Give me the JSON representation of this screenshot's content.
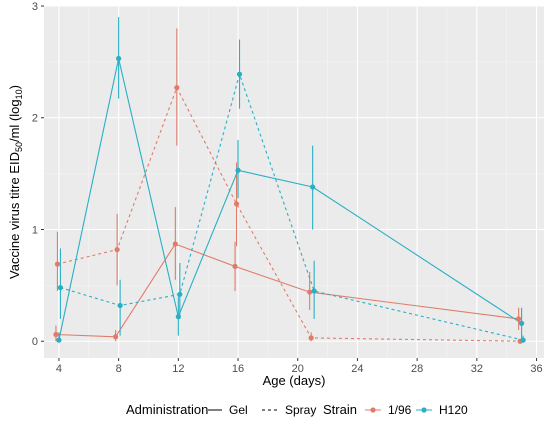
{
  "chart_data": {
    "type": "line",
    "xlabel": "Age (days)",
    "ylabel_main": "Vaccine virus titre EID",
    "ylabel_sub": "50",
    "ylabel_mid": "/ml (log",
    "ylabel_sub2": "10",
    "ylabel_end": ")",
    "xlim": [
      3,
      36.5
    ],
    "ylim": [
      -0.15,
      3.0
    ],
    "x_ticks": [
      4,
      8,
      12,
      16,
      20,
      24,
      28,
      32,
      36
    ],
    "y_ticks": [
      0,
      1,
      2,
      3
    ],
    "grid": true,
    "legend_position": "bottom",
    "legend": {
      "administration_title": "Administration",
      "administration_items": [
        {
          "label": "Gel",
          "linetype": "solid"
        },
        {
          "label": "Spray",
          "linetype": "dashed"
        }
      ],
      "strain_title": "Strain",
      "strain_items": [
        {
          "label": "1/96",
          "color": "#E07B6A"
        },
        {
          "label": "H120",
          "color": "#29AFC4"
        }
      ]
    },
    "series": [
      {
        "strain": "1/96",
        "administration": "Gel",
        "color": "#E07B6A",
        "linetype": "solid",
        "x": [
          3.8,
          7.8,
          11.8,
          15.8,
          20.8,
          34.8
        ],
        "y": [
          0.06,
          0.04,
          0.87,
          0.67,
          0.44,
          0.2
        ],
        "err_low": [
          0.0,
          0.0,
          0.55,
          0.45,
          0.28,
          0.1
        ],
        "err_high": [
          0.14,
          0.1,
          1.2,
          0.89,
          0.62,
          0.3
        ]
      },
      {
        "strain": "1/96",
        "administration": "Spray",
        "color": "#E07B6A",
        "linetype": "dashed",
        "x": [
          3.9,
          7.9,
          11.9,
          15.9,
          20.9,
          34.9
        ],
        "y": [
          0.69,
          0.82,
          2.27,
          1.23,
          0.03,
          0.0
        ],
        "err_low": [
          0.45,
          0.5,
          1.75,
          0.85,
          0.0,
          0.0
        ],
        "err_high": [
          0.98,
          1.14,
          2.8,
          1.6,
          0.08,
          0.02
        ]
      },
      {
        "strain": "H120",
        "administration": "Gel",
        "color": "#29AFC4",
        "linetype": "solid",
        "x": [
          4.0,
          8.0,
          12.0,
          16.0,
          21.0,
          35.0
        ],
        "y": [
          0.01,
          2.53,
          0.22,
          1.53,
          1.38,
          0.16
        ],
        "err_low": [
          0.0,
          2.17,
          0.05,
          1.28,
          1.0,
          0.0
        ],
        "err_high": [
          0.08,
          2.9,
          0.4,
          1.8,
          1.75,
          0.3
        ]
      },
      {
        "strain": "H120",
        "administration": "Spray",
        "color": "#29AFC4",
        "linetype": "dashed",
        "x": [
          4.1,
          8.1,
          12.1,
          16.1,
          21.1,
          35.1
        ],
        "y": [
          0.48,
          0.32,
          0.42,
          2.39,
          0.45,
          0.01
        ],
        "err_low": [
          0.2,
          0.05,
          0.2,
          2.08,
          0.2,
          0.0
        ],
        "err_high": [
          0.83,
          0.55,
          0.7,
          2.7,
          0.72,
          0.05
        ]
      }
    ]
  }
}
